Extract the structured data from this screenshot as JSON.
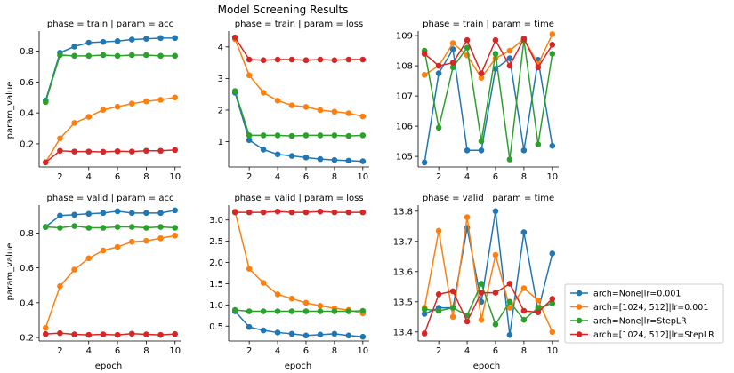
{
  "chart_data": {
    "type": "line",
    "title": "Model Screening Results",
    "xlabel": "epoch",
    "ylabel": "param_value",
    "legend_position": "lower-right-outside",
    "grid": false,
    "x": [
      1,
      2,
      3,
      4,
      5,
      6,
      7,
      8,
      9,
      10
    ],
    "series_styles": [
      {
        "name": "arch=None|lr=0.001",
        "color": "#1f77b4"
      },
      {
        "name": "arch=[1024, 512]|lr=0.001",
        "color": "#ff7f0e"
      },
      {
        "name": "arch=None|lr=StepLR",
        "color": "#2ca02c"
      },
      {
        "name": "arch=[1024, 512]|lr=StepLR",
        "color": "#d62728"
      }
    ],
    "panels": [
      {
        "title": "phase = train | param = acc",
        "ylim": [
          0.05,
          0.93
        ],
        "yticks": [
          0.2,
          0.4,
          0.6,
          0.8
        ],
        "ytick_labels": [
          "0.2",
          "0.4",
          "0.6",
          "0.8"
        ],
        "xticks": [
          2,
          4,
          6,
          8,
          10
        ],
        "xtick_labels": [
          "2",
          "4",
          "6",
          "8",
          "10"
        ],
        "series": [
          {
            "name": "arch=None|lr=0.001",
            "values": [
              0.48,
              0.79,
              0.83,
              0.855,
              0.86,
              0.865,
              0.875,
              0.88,
              0.885,
              0.885
            ]
          },
          {
            "name": "arch=[1024, 512]|lr=0.001",
            "values": [
              0.08,
              0.235,
              0.335,
              0.375,
              0.42,
              0.44,
              0.46,
              0.475,
              0.485,
              0.5
            ]
          },
          {
            "name": "arch=None|lr=StepLR",
            "values": [
              0.47,
              0.775,
              0.77,
              0.77,
              0.775,
              0.77,
              0.775,
              0.775,
              0.77,
              0.77
            ]
          },
          {
            "name": "arch=[1024, 512]|lr=StepLR",
            "values": [
              0.08,
              0.155,
              0.15,
              0.15,
              0.148,
              0.152,
              0.15,
              0.155,
              0.155,
              0.16
            ]
          }
        ]
      },
      {
        "title": "phase = train | param = loss",
        "ylim": [
          0.2,
          4.5
        ],
        "yticks": [
          1,
          2,
          3,
          4
        ],
        "ytick_labels": [
          "1",
          "2",
          "3",
          "4"
        ],
        "xticks": [
          2,
          4,
          6,
          8,
          10
        ],
        "xtick_labels": [
          "2",
          "4",
          "6",
          "8",
          "10"
        ],
        "series": [
          {
            "name": "arch=None|lr=0.001",
            "values": [
              2.55,
              1.05,
              0.75,
              0.6,
              0.55,
              0.5,
              0.45,
              0.42,
              0.4,
              0.38
            ]
          },
          {
            "name": "arch=[1024, 512]|lr=0.001",
            "values": [
              4.25,
              3.1,
              2.55,
              2.3,
              2.15,
              2.1,
              2.0,
              1.95,
              1.9,
              1.8
            ]
          },
          {
            "name": "arch=None|lr=StepLR",
            "values": [
              2.6,
              1.2,
              1.2,
              1.2,
              1.18,
              1.2,
              1.2,
              1.2,
              1.18,
              1.2
            ]
          },
          {
            "name": "arch=[1024, 512]|lr=StepLR",
            "values": [
              4.3,
              3.6,
              3.58,
              3.6,
              3.6,
              3.58,
              3.6,
              3.58,
              3.6,
              3.6
            ]
          }
        ]
      },
      {
        "title": "phase = train | param = time",
        "ylim": [
          104.65,
          109.15
        ],
        "yticks": [
          105,
          106,
          107,
          108,
          109
        ],
        "ytick_labels": [
          "105",
          "106",
          "107",
          "108",
          "109"
        ],
        "xticks": [
          2,
          4,
          6,
          8,
          10
        ],
        "xtick_labels": [
          "2",
          "4",
          "6",
          "8",
          "10"
        ],
        "series": [
          {
            "name": "arch=None|lr=0.001",
            "values": [
              104.8,
              107.75,
              108.55,
              105.2,
              105.2,
              107.9,
              108.25,
              105.2,
              108.2,
              105.35
            ]
          },
          {
            "name": "arch=[1024, 512]|lr=0.001",
            "values": [
              107.7,
              108.0,
              108.75,
              108.35,
              107.6,
              108.25,
              108.5,
              108.9,
              108.05,
              109.05
            ]
          },
          {
            "name": "arch=None|lr=StepLR",
            "values": [
              108.5,
              105.95,
              107.95,
              108.6,
              105.5,
              108.4,
              104.9,
              108.85,
              105.4,
              108.4
            ]
          },
          {
            "name": "arch=[1024, 512]|lr=StepLR",
            "values": [
              108.4,
              108.0,
              108.1,
              108.85,
              107.75,
              108.85,
              108.0,
              108.9,
              107.95,
              108.7
            ]
          }
        ]
      },
      {
        "title": "phase = valid | param = acc",
        "ylim": [
          0.18,
          0.96
        ],
        "yticks": [
          0.2,
          0.4,
          0.6,
          0.8
        ],
        "ytick_labels": [
          "0.2",
          "0.4",
          "0.6",
          "0.8"
        ],
        "xticks": [
          2,
          4,
          6,
          8,
          10
        ],
        "xtick_labels": [
          "2",
          "4",
          "6",
          "8",
          "10"
        ],
        "series": [
          {
            "name": "arch=None|lr=0.001",
            "values": [
              0.835,
              0.9,
              0.905,
              0.91,
              0.915,
              0.925,
              0.915,
              0.915,
              0.915,
              0.93
            ]
          },
          {
            "name": "arch=[1024, 512]|lr=0.001",
            "values": [
              0.255,
              0.495,
              0.59,
              0.655,
              0.7,
              0.72,
              0.75,
              0.755,
              0.77,
              0.785
            ]
          },
          {
            "name": "arch=None|lr=StepLR",
            "values": [
              0.835,
              0.83,
              0.84,
              0.83,
              0.83,
              0.835,
              0.835,
              0.83,
              0.835,
              0.83
            ]
          },
          {
            "name": "arch=[1024, 512]|lr=StepLR",
            "values": [
              0.22,
              0.225,
              0.218,
              0.215,
              0.218,
              0.215,
              0.222,
              0.218,
              0.215,
              0.22
            ]
          }
        ]
      },
      {
        "title": "phase = valid | param = loss",
        "ylim": [
          0.15,
          3.35
        ],
        "yticks": [
          0.5,
          1.0,
          1.5,
          2.0,
          2.5,
          3.0
        ],
        "ytick_labels": [
          "0.5",
          "1.0",
          "1.5",
          "2.0",
          "2.5",
          "3.0"
        ],
        "xticks": [
          2,
          4,
          6,
          8,
          10
        ],
        "xtick_labels": [
          "2",
          "4",
          "6",
          "8",
          "10"
        ],
        "series": [
          {
            "name": "arch=None|lr=0.001",
            "values": [
              0.85,
              0.48,
              0.4,
              0.35,
              0.32,
              0.28,
              0.3,
              0.32,
              0.28,
              0.25
            ]
          },
          {
            "name": "arch=[1024, 512]|lr=0.001",
            "values": [
              3.2,
              1.85,
              1.52,
              1.25,
              1.15,
              1.05,
              0.98,
              0.92,
              0.88,
              0.8
            ]
          },
          {
            "name": "arch=None|lr=StepLR",
            "values": [
              0.88,
              0.85,
              0.85,
              0.85,
              0.85,
              0.85,
              0.85,
              0.85,
              0.85,
              0.86
            ]
          },
          {
            "name": "arch=[1024, 512]|lr=StepLR",
            "values": [
              3.18,
              3.18,
              3.18,
              3.2,
              3.18,
              3.18,
              3.2,
              3.18,
              3.18,
              3.18
            ]
          }
        ]
      },
      {
        "title": "phase = valid | param = time",
        "ylim": [
          13.37,
          13.82
        ],
        "yticks": [
          13.4,
          13.5,
          13.6,
          13.7,
          13.8
        ],
        "ytick_labels": [
          "13.4",
          "13.5",
          "13.6",
          "13.7",
          "13.8"
        ],
        "xticks": [
          2,
          4,
          6,
          8,
          10
        ],
        "xtick_labels": [
          "2",
          "4",
          "6",
          "8",
          "10"
        ],
        "series": [
          {
            "name": "arch=None|lr=0.001",
            "values": [
              13.46,
              13.48,
              13.48,
              13.745,
              13.5,
              13.8,
              13.39,
              13.73,
              13.47,
              13.66
            ]
          },
          {
            "name": "arch=[1024, 512]|lr=0.001",
            "values": [
              13.48,
              13.735,
              13.45,
              13.78,
              13.44,
              13.655,
              13.48,
              13.545,
              13.505,
              13.4
            ]
          },
          {
            "name": "arch=None|lr=StepLR",
            "values": [
              13.475,
              13.47,
              13.48,
              13.455,
              13.56,
              13.425,
              13.5,
              13.44,
              13.48,
              13.495
            ]
          },
          {
            "name": "arch=[1024, 512]|lr=StepLR",
            "values": [
              13.395,
              13.525,
              13.535,
              13.435,
              13.53,
              13.53,
              13.56,
              13.47,
              13.465,
              13.51
            ]
          }
        ]
      }
    ]
  }
}
